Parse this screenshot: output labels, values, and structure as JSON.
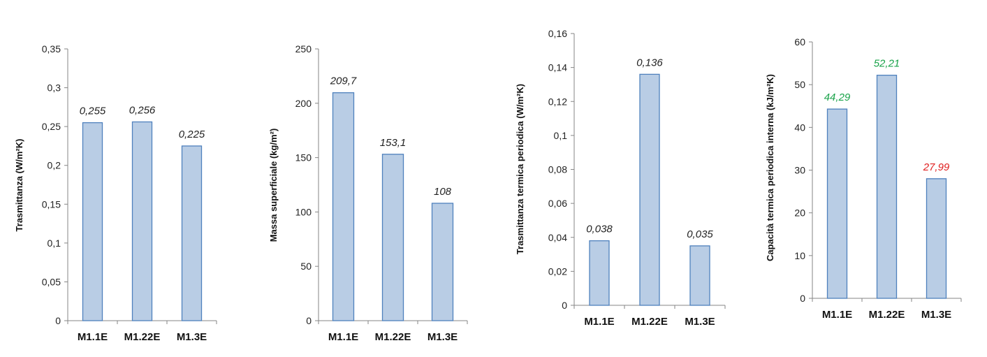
{
  "chart_data": [
    {
      "type": "bar",
      "categories": [
        "M1.1E",
        "M1.22E",
        "M1.3E"
      ],
      "values": [
        0.255,
        0.256,
        0.225
      ],
      "data_labels": [
        "0,255",
        "0,256",
        "0,225"
      ],
      "label_colors": [
        "#222222",
        "#222222",
        "#222222"
      ],
      "ylabel": "Trasmittanza (W/m²K)",
      "ylim": [
        0,
        0.35
      ],
      "yticks": [
        0,
        0.05,
        0.1,
        0.15,
        0.2,
        0.25,
        0.3,
        0.35
      ],
      "ytick_labels": [
        "0",
        "0,05",
        "0,1",
        "0,15",
        "0,2",
        "0,25",
        "0,3",
        "0,35"
      ],
      "bar_color": "#b9cde5",
      "bar_border": "#4f81bd",
      "grid": false,
      "legend": "none"
    },
    {
      "type": "bar",
      "categories": [
        "M1.1E",
        "M1.22E",
        "M1.3E"
      ],
      "values": [
        209.7,
        153.1,
        108
      ],
      "data_labels": [
        "209,7",
        "153,1",
        "108"
      ],
      "label_colors": [
        "#222222",
        "#222222",
        "#222222"
      ],
      "ylabel": "Massa superficiale (kg/m²)",
      "ylim": [
        0,
        250
      ],
      "yticks": [
        0,
        50,
        100,
        150,
        200,
        250
      ],
      "ytick_labels": [
        "0",
        "50",
        "100",
        "150",
        "200",
        "250"
      ],
      "bar_color": "#b9cde5",
      "bar_border": "#4f81bd",
      "grid": false,
      "legend": "none"
    },
    {
      "type": "bar",
      "categories": [
        "M1.1E",
        "M1.22E",
        "M1.3E"
      ],
      "values": [
        0.038,
        0.136,
        0.035
      ],
      "data_labels": [
        "0,038",
        "0,136",
        "0,035"
      ],
      "label_colors": [
        "#222222",
        "#222222",
        "#222222"
      ],
      "ylabel": "Trasmittanza termica periodica (W/m²K)",
      "ylim": [
        0,
        0.16
      ],
      "yticks": [
        0,
        0.02,
        0.04,
        0.06,
        0.08,
        0.1,
        0.12,
        0.14,
        0.16
      ],
      "ytick_labels": [
        "0",
        "0,02",
        "0,04",
        "0,06",
        "0,08",
        "0,1",
        "0,12",
        "0,14",
        "0,16"
      ],
      "bar_color": "#b9cde5",
      "bar_border": "#4f81bd",
      "grid": false,
      "legend": "none"
    },
    {
      "type": "bar",
      "categories": [
        "M1.1E",
        "M1.22E",
        "M1.3E"
      ],
      "values": [
        44.29,
        52.21,
        27.99
      ],
      "data_labels": [
        "44,29",
        "52,21",
        "27,99"
      ],
      "label_colors": [
        "#1aa34a",
        "#1aa34a",
        "#e02020"
      ],
      "ylabel": "Capacità termica periodica interna (kJ/m²K)",
      "ylim": [
        0,
        60
      ],
      "yticks": [
        0,
        10,
        20,
        30,
        40,
        50,
        60
      ],
      "ytick_labels": [
        "0",
        "10",
        "20",
        "30",
        "40",
        "50",
        "60"
      ],
      "bar_color": "#b9cde5",
      "bar_border": "#4f81bd",
      "grid": false,
      "legend": "none"
    }
  ]
}
